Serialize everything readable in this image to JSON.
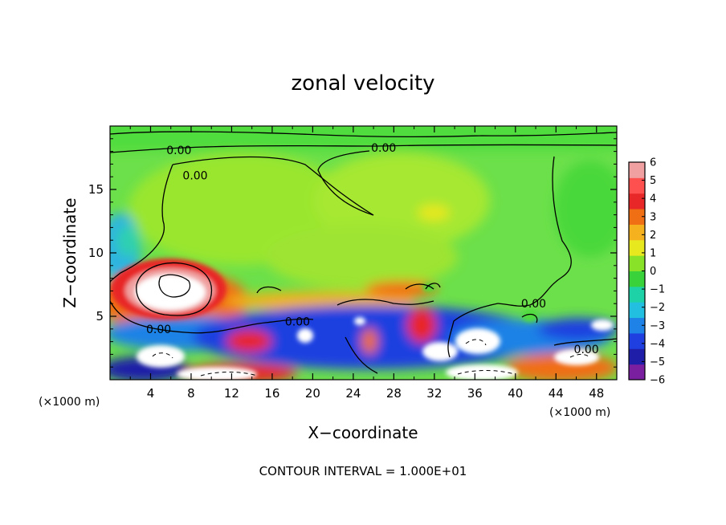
{
  "chart_data": {
    "type": "heatmap",
    "title": "zonal velocity",
    "xlabel": "X−coordinate",
    "ylabel": "Z−coordinate",
    "x_unit_label": "(×1000 m)",
    "y_unit_label": "(×1000 m)",
    "xlim": [
      0,
      50
    ],
    "ylim": [
      0,
      20
    ],
    "x_ticks": [
      4,
      8,
      12,
      16,
      20,
      24,
      28,
      32,
      36,
      40,
      44,
      48
    ],
    "x_tick_labels": [
      "4",
      "8",
      "12",
      "16",
      "20",
      "24",
      "28",
      "32",
      "36",
      "40",
      "44",
      "48"
    ],
    "y_ticks": [
      5,
      10,
      15
    ],
    "y_tick_labels": [
      "5",
      "10",
      "15"
    ],
    "colorbar": {
      "min": -6,
      "max": 6,
      "ticks": [
        6,
        5,
        4,
        3,
        2,
        1,
        0,
        -1,
        -2,
        -3,
        -4,
        -5,
        -6
      ],
      "tick_labels": [
        "6",
        "5",
        "4",
        "3",
        "2",
        "1",
        "0",
        "−1",
        "−2",
        "−3",
        "−4",
        "−5",
        "−6"
      ],
      "colors": [
        "#7a1fa0",
        "#1e1ea8",
        "#1f3fe0",
        "#1e82e6",
        "#22bfe0",
        "#1ed2a8",
        "#3ad23a",
        "#8ae228",
        "#e8e81e",
        "#f5b21e",
        "#f06e14",
        "#e82828",
        "#ff5050",
        "#f0a0a0"
      ]
    },
    "contour_labels": [
      {
        "text": "0.00",
        "x": 6.8,
        "y": 18.1
      },
      {
        "text": "0.00",
        "x": 27.0,
        "y": 18.3
      },
      {
        "text": "0.00",
        "x": 8.4,
        "y": 16.1
      },
      {
        "text": "0.00",
        "x": 4.8,
        "y": 4.0
      },
      {
        "text": "0.00",
        "x": 18.5,
        "y": 4.6
      },
      {
        "text": "0.00",
        "x": 41.8,
        "y": 6.0
      },
      {
        "text": "0.00",
        "x": 47.0,
        "y": 2.4
      }
    ],
    "contour_interval": "CONTOUR INTERVAL = 1.000E+01",
    "grid": false,
    "legend": "colorbar-right"
  }
}
